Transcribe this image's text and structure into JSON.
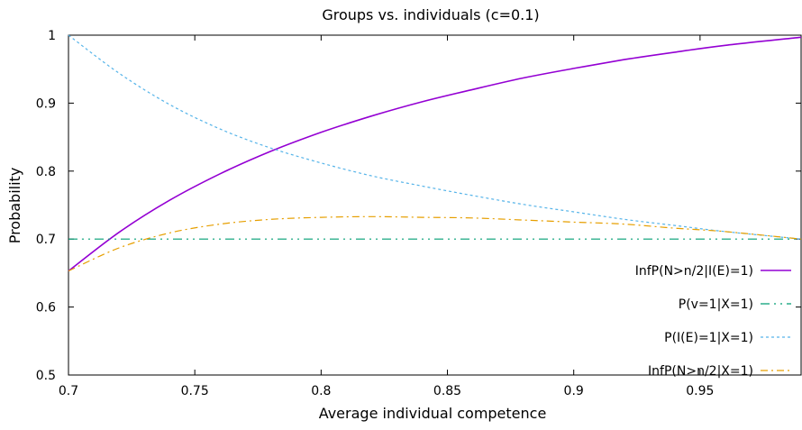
{
  "chart_data": {
    "type": "line",
    "title": "Groups vs. individuals (c=0.1)",
    "xlabel": "Average individual competence",
    "ylabel": "Probability",
    "xlim": [
      0.7,
      0.99
    ],
    "ylim": [
      0.5,
      1.0
    ],
    "x_ticks": [
      0.7,
      0.75,
      0.8,
      0.85,
      0.9,
      0.95
    ],
    "x_tick_labels": [
      "0.7",
      "0.75",
      "0.8",
      "0.85",
      "0.9",
      "0.95"
    ],
    "y_ticks": [
      0.5,
      0.6,
      0.7,
      0.8,
      0.9,
      1.0
    ],
    "y_tick_labels": [
      "0.5",
      "0.6",
      "0.7",
      "0.8",
      "0.9",
      "1"
    ],
    "grid": false,
    "legend_position": "right",
    "x": [
      0.7,
      0.72,
      0.74,
      0.76,
      0.78,
      0.8,
      0.82,
      0.84,
      0.86,
      0.88,
      0.9,
      0.92,
      0.94,
      0.96,
      0.99
    ],
    "series": [
      {
        "name": "InfP(N>n/2|I(E)=1)",
        "color": "#9400d3",
        "dash": "solid",
        "values": [
          0.653,
          0.71,
          0.757,
          0.796,
          0.829,
          0.857,
          0.881,
          0.902,
          0.92,
          0.937,
          0.951,
          0.964,
          0.975,
          0.985,
          0.997
        ]
      },
      {
        "name": "P(v=1|X=1)",
        "color": "#009e73",
        "dash": "dashdotdot",
        "values": [
          0.7,
          0.7,
          0.7,
          0.7,
          0.7,
          0.7,
          0.7,
          0.7,
          0.7,
          0.7,
          0.7,
          0.7,
          0.7,
          0.7,
          0.7
        ]
      },
      {
        "name": "P(I(E)=1|X=1)",
        "color": "#56b4e9",
        "dash": "dotted",
        "values": [
          1.0,
          0.944,
          0.898,
          0.862,
          0.834,
          0.812,
          0.793,
          0.778,
          0.764,
          0.751,
          0.74,
          0.729,
          0.72,
          0.711,
          0.7
        ]
      },
      {
        "name": "InfP(N>n/2|X=1)",
        "color": "#e69f00",
        "dash": "dashdot",
        "values": [
          0.653,
          0.687,
          0.709,
          0.722,
          0.729,
          0.732,
          0.733,
          0.732,
          0.731,
          0.728,
          0.725,
          0.722,
          0.716,
          0.711,
          0.7
        ]
      }
    ]
  }
}
